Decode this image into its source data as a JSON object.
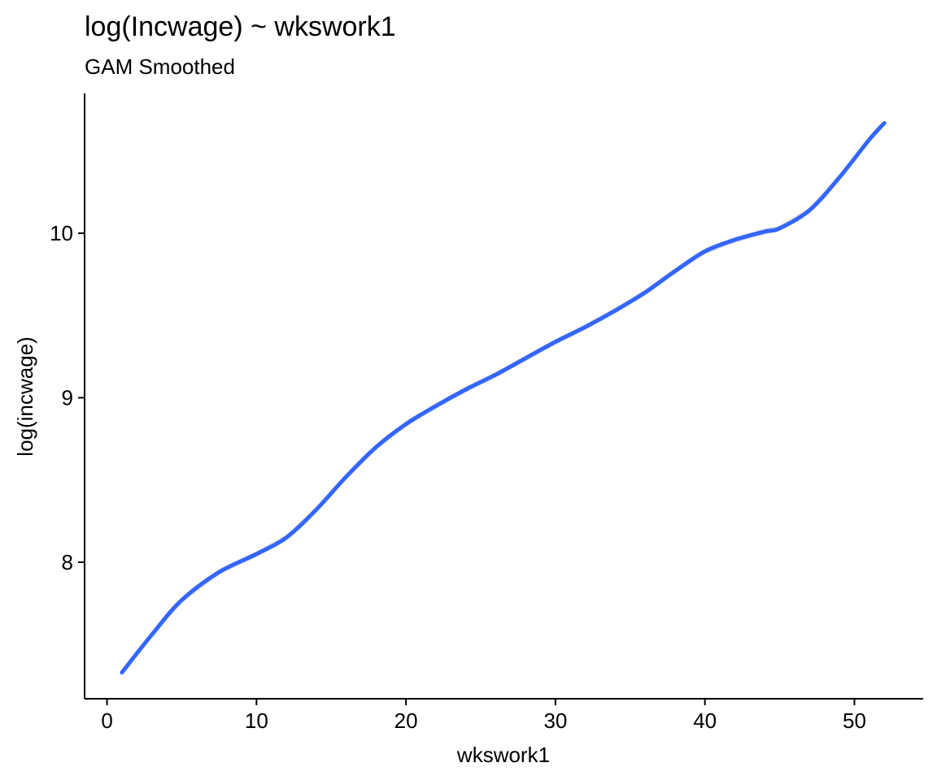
{
  "chart_data": {
    "type": "line",
    "title": "log(Incwage) ~ wkswork1",
    "subtitle": "GAM Smoothed",
    "xlabel": "wkswork1",
    "ylabel": "log(incwage)",
    "xlim": [
      -1.5,
      54.6
    ],
    "ylim": [
      7.17,
      10.85
    ],
    "x_ticks": [
      0,
      10,
      20,
      30,
      40,
      50
    ],
    "y_ticks": [
      8,
      9,
      10
    ],
    "x_tick_labels": [
      "0",
      "10",
      "20",
      "30",
      "40",
      "50"
    ],
    "y_tick_labels": [
      "8",
      "9",
      "10"
    ],
    "grid": false,
    "legend": "none",
    "series": [
      {
        "color": "#3366FF",
        "band_color": "#BEBEBE",
        "x": [
          1,
          3,
          5,
          7.5,
          10,
          12,
          14,
          16,
          18,
          20,
          22,
          24,
          26,
          28,
          30,
          32,
          34,
          36,
          38,
          40,
          42,
          44,
          45,
          47,
          49,
          51,
          52
        ],
        "y": [
          7.33,
          7.56,
          7.77,
          7.94,
          8.05,
          8.15,
          8.32,
          8.52,
          8.7,
          8.84,
          8.95,
          9.05,
          9.14,
          9.24,
          9.34,
          9.43,
          9.53,
          9.64,
          9.77,
          9.89,
          9.96,
          10.01,
          10.03,
          10.14,
          10.34,
          10.57,
          10.67
        ]
      }
    ]
  }
}
